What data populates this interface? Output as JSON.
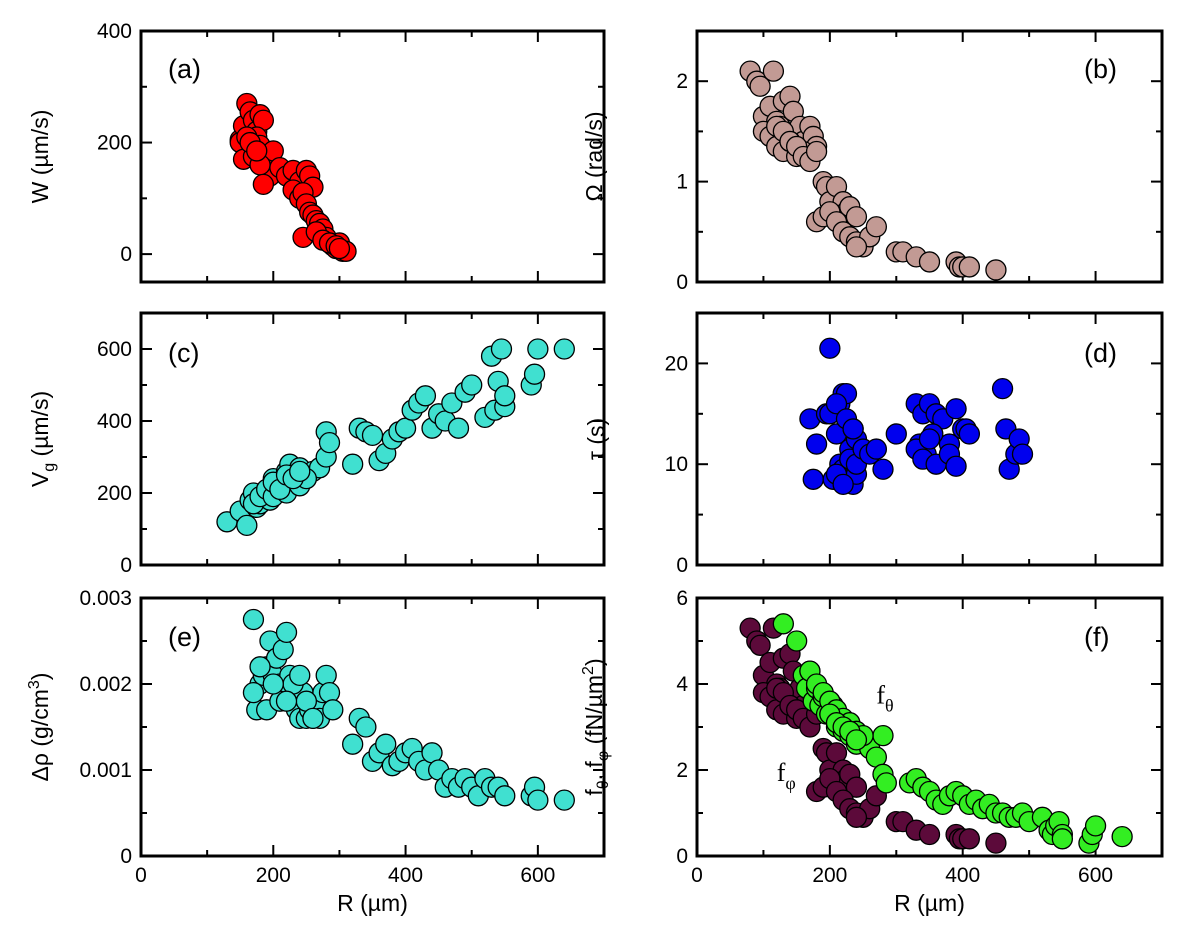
{
  "chart_data": [
    {
      "id": "a",
      "type": "scatter",
      "panel_label": "(a)",
      "xlabel": "",
      "ylabel": "W (µm/s)",
      "xlim": [
        0,
        700
      ],
      "ylim": [
        -50,
        400
      ],
      "xticks": [
        0,
        200,
        400,
        600
      ],
      "yticks": [
        0,
        200,
        400
      ],
      "show_xticklabels": false,
      "color": "#ff0000",
      "x": [
        150,
        155,
        160,
        165,
        170,
        175,
        180,
        185,
        160,
        165,
        170,
        175,
        180,
        150,
        155,
        190,
        195,
        200,
        160,
        170,
        180,
        185,
        165,
        175,
        210,
        220,
        230,
        240,
        250,
        255,
        260,
        230,
        240,
        245,
        250,
        255,
        260,
        265,
        270,
        275,
        280,
        285,
        290,
        295,
        300,
        305,
        310,
        245,
        265,
        275,
        285,
        295,
        300
      ],
      "y": [
        205,
        230,
        270,
        255,
        240,
        220,
        250,
        240,
        180,
        190,
        200,
        210,
        195,
        200,
        170,
        175,
        140,
        185,
        210,
        175,
        160,
        125,
        200,
        185,
        155,
        140,
        150,
        130,
        150,
        140,
        120,
        115,
        100,
        110,
        90,
        75,
        70,
        60,
        55,
        45,
        30,
        20,
        15,
        10,
        20,
        5,
        5,
        30,
        40,
        25,
        20,
        15,
        10
      ]
    },
    {
      "id": "b",
      "type": "scatter",
      "panel_label": "(b)",
      "xlabel": "",
      "ylabel": "Ω (rad/s)",
      "xlim": [
        0,
        700
      ],
      "ylim": [
        0,
        2.5
      ],
      "xticks": [
        0,
        200,
        400,
        600
      ],
      "yticks": [
        0,
        1,
        2
      ],
      "show_xticklabels": false,
      "color": "#c29a94",
      "x": [
        80,
        90,
        95,
        100,
        110,
        115,
        120,
        125,
        130,
        140,
        145,
        150,
        155,
        160,
        165,
        170,
        175,
        180,
        100,
        110,
        120,
        130,
        140,
        150,
        160,
        120,
        130,
        140,
        150,
        160,
        170,
        180,
        190,
        195,
        200,
        210,
        220,
        225,
        230,
        240,
        180,
        190,
        200,
        210,
        220,
        230,
        240,
        250,
        260,
        270,
        240,
        300,
        310,
        330,
        350,
        390,
        395,
        400,
        410,
        450
      ],
      "y": [
        2.1,
        2.0,
        1.95,
        1.65,
        1.75,
        2.1,
        1.6,
        1.55,
        1.8,
        1.85,
        1.7,
        1.5,
        1.55,
        1.4,
        1.3,
        1.55,
        1.45,
        1.35,
        1.5,
        1.45,
        1.35,
        1.3,
        1.4,
        1.25,
        1.3,
        1.55,
        1.5,
        1.4,
        1.35,
        1.25,
        1.2,
        1.3,
        1.0,
        0.95,
        0.8,
        0.95,
        0.8,
        0.7,
        0.75,
        0.65,
        0.6,
        0.65,
        0.7,
        0.6,
        0.5,
        0.45,
        0.4,
        0.35,
        0.45,
        0.55,
        0.35,
        0.3,
        0.3,
        0.25,
        0.2,
        0.2,
        0.15,
        0.15,
        0.15,
        0.12
      ]
    },
    {
      "id": "c",
      "type": "scatter",
      "panel_label": "(c)",
      "xlabel": "",
      "ylabel": "V_g (µm/s)",
      "ylabel_main": "V",
      "ylabel_sub": "g",
      "ylabel_tail": " (µm/s)",
      "xlim": [
        0,
        700
      ],
      "ylim": [
        0,
        700
      ],
      "xticks": [
        0,
        200,
        400,
        600
      ],
      "yticks": [
        0,
        200,
        400,
        600
      ],
      "show_xticklabels": false,
      "color": "#40e0d0",
      "x": [
        130,
        150,
        160,
        165,
        170,
        175,
        180,
        185,
        190,
        195,
        200,
        205,
        210,
        215,
        220,
        225,
        230,
        240,
        250,
        260,
        270,
        280,
        280,
        285,
        320,
        330,
        340,
        350,
        360,
        370,
        380,
        390,
        400,
        410,
        420,
        430,
        440,
        450,
        460,
        470,
        480,
        490,
        500,
        520,
        530,
        535,
        540,
        545,
        550,
        550,
        590,
        595,
        600,
        640,
        170,
        180,
        190,
        200,
        210,
        220,
        230,
        240,
        250,
        200,
        210,
        220,
        230,
        240
      ],
      "y": [
        120,
        150,
        110,
        180,
        200,
        160,
        170,
        190,
        210,
        180,
        240,
        200,
        230,
        220,
        260,
        280,
        250,
        270,
        240,
        260,
        270,
        300,
        370,
        340,
        280,
        380,
        370,
        360,
        290,
        310,
        350,
        370,
        380,
        430,
        450,
        470,
        380,
        420,
        400,
        450,
        380,
        480,
        500,
        410,
        580,
        430,
        510,
        600,
        440,
        470,
        500,
        530,
        600,
        600,
        170,
        190,
        210,
        190,
        220,
        200,
        250,
        220,
        240,
        230,
        210,
        250,
        240,
        260
      ]
    },
    {
      "id": "d",
      "type": "scatter",
      "panel_label": "(d)",
      "xlabel": "",
      "ylabel": "τ (s)",
      "xlim": [
        0,
        700
      ],
      "ylim": [
        0,
        25
      ],
      "xticks": [
        0,
        200,
        400,
        600
      ],
      "yticks": [
        0,
        10,
        20
      ],
      "show_xticklabels": false,
      "color": "#0000ee",
      "x": [
        170,
        175,
        180,
        195,
        200,
        205,
        210,
        215,
        220,
        225,
        230,
        235,
        240,
        215,
        220,
        225,
        230,
        235,
        240,
        200,
        210,
        220,
        230,
        240,
        250,
        260,
        270,
        280,
        210,
        225,
        235,
        300,
        330,
        340,
        350,
        360,
        370,
        380,
        335,
        345,
        355,
        390,
        400,
        405,
        410,
        330,
        340,
        350,
        360,
        380,
        390,
        460,
        465,
        470,
        480,
        485,
        490
      ],
      "y": [
        14.5,
        8.5,
        12,
        15,
        21.5,
        8.5,
        13,
        16,
        17,
        17,
        11.5,
        13.5,
        12.5,
        10,
        9.5,
        9,
        8.5,
        8,
        9,
        15,
        9,
        8,
        10.5,
        10,
        11.5,
        11,
        11.5,
        9.5,
        16,
        14.5,
        13.5,
        13,
        16,
        15,
        16,
        15,
        14.5,
        12,
        12,
        11,
        13,
        15.5,
        13.5,
        13.5,
        13,
        11.5,
        10.5,
        12.5,
        10,
        11,
        9.8,
        17.5,
        13.5,
        9.5,
        11,
        12.5,
        11
      ]
    },
    {
      "id": "e",
      "type": "scatter",
      "panel_label": "(e)",
      "xlabel": "R (µm)",
      "ylabel": "Δρ (g/cm³)",
      "ylabel_main": "Δρ (g/cm",
      "ylabel_sup": "3",
      "ylabel_tail": ")",
      "xlim": [
        0,
        700
      ],
      "ylim": [
        0,
        0.003
      ],
      "xticks": [
        0,
        200,
        400,
        600
      ],
      "yticks": [
        0,
        0.001,
        0.002,
        0.003
      ],
      "ytick_labels": [
        "0",
        "0.001",
        "0.002",
        "0.003"
      ],
      "show_xticklabels": true,
      "color": "#40e0d0",
      "x": [
        170,
        175,
        180,
        185,
        190,
        195,
        200,
        205,
        210,
        215,
        220,
        225,
        230,
        235,
        240,
        245,
        250,
        255,
        260,
        265,
        270,
        275,
        280,
        285,
        170,
        190,
        210,
        230,
        250,
        270,
        290,
        320,
        330,
        340,
        350,
        360,
        370,
        380,
        390,
        400,
        410,
        420,
        430,
        440,
        450,
        460,
        470,
        480,
        490,
        500,
        510,
        520,
        530,
        540,
        550,
        590,
        595,
        600,
        640,
        180,
        200,
        220,
        240,
        260
      ],
      "y": [
        0.00275,
        0.0017,
        0.002,
        0.0021,
        0.0022,
        0.0025,
        0.0021,
        0.0023,
        0.002,
        0.0024,
        0.0026,
        0.0021,
        0.0018,
        0.0017,
        0.0016,
        0.0019,
        0.0016,
        0.0017,
        0.0016,
        0.0017,
        0.0018,
        0.0019,
        0.0021,
        0.0019,
        0.0019,
        0.0017,
        0.0018,
        0.002,
        0.0018,
        0.0016,
        0.0017,
        0.0013,
        0.0016,
        0.0015,
        0.0011,
        0.0012,
        0.0013,
        0.00105,
        0.0011,
        0.0012,
        0.00125,
        0.0011,
        0.001,
        0.0012,
        0.001,
        0.0008,
        0.0009,
        0.0008,
        0.0009,
        0.0008,
        0.0007,
        0.0009,
        0.0008,
        0.0008,
        0.0007,
        0.0007,
        0.0008,
        0.00065,
        0.00065,
        0.0022,
        0.002,
        0.0018,
        0.0021,
        0.0016
      ]
    },
    {
      "id": "f",
      "type": "scatter",
      "panel_label": "(f)",
      "xlabel": "R (µm)",
      "ylabel": "f_θ, f_φ (fN/µm²)",
      "xlim": [
        0,
        700
      ],
      "ylim": [
        0,
        6
      ],
      "xticks": [
        0,
        200,
        400,
        600
      ],
      "yticks": [
        0,
        2,
        4,
        6
      ],
      "show_xticklabels": true,
      "series": [
        {
          "name": "f_φ",
          "color": "#5c0a3a",
          "x": [
            80,
            90,
            95,
            100,
            110,
            115,
            120,
            125,
            130,
            140,
            145,
            150,
            155,
            160,
            165,
            170,
            175,
            180,
            100,
            110,
            120,
            130,
            140,
            150,
            160,
            120,
            130,
            140,
            150,
            160,
            170,
            180,
            190,
            195,
            200,
            210,
            220,
            225,
            230,
            240,
            180,
            190,
            200,
            210,
            220,
            230,
            240,
            250,
            260,
            270,
            240,
            300,
            310,
            330,
            350,
            390,
            395,
            400,
            410,
            450
          ],
          "y": [
            5.3,
            5.0,
            4.9,
            4.2,
            4.5,
            5.3,
            4.0,
            3.9,
            4.6,
            4.7,
            4.3,
            3.8,
            3.9,
            3.5,
            3.3,
            3.9,
            3.7,
            3.4,
            3.8,
            3.7,
            3.4,
            3.3,
            3.5,
            3.2,
            3.3,
            3.9,
            3.8,
            3.5,
            3.4,
            3.2,
            3.0,
            3.3,
            2.5,
            2.4,
            2.0,
            2.4,
            2.0,
            1.8,
            1.9,
            1.6,
            1.5,
            1.6,
            1.8,
            1.5,
            1.3,
            1.1,
            1.0,
            0.9,
            1.1,
            1.4,
            0.9,
            0.8,
            0.8,
            0.6,
            0.5,
            0.5,
            0.4,
            0.4,
            0.4,
            0.3
          ]
        },
        {
          "name": "f_θ",
          "color": "#33ee22",
          "x": [
            130,
            150,
            160,
            165,
            170,
            175,
            180,
            185,
            190,
            195,
            200,
            205,
            210,
            215,
            220,
            225,
            230,
            240,
            250,
            260,
            270,
            280,
            280,
            285,
            320,
            330,
            340,
            350,
            360,
            370,
            380,
            390,
            400,
            410,
            420,
            430,
            440,
            450,
            460,
            470,
            480,
            490,
            500,
            520,
            530,
            535,
            540,
            545,
            550,
            550,
            590,
            595,
            600,
            640,
            170,
            180,
            190,
            200,
            210,
            220,
            230,
            240,
            250,
            200,
            210,
            220,
            230,
            240
          ],
          "y": [
            5.4,
            5.0,
            4.2,
            3.9,
            4.3,
            3.6,
            3.9,
            3.5,
            3.7,
            3.3,
            3.3,
            3.5,
            3.0,
            3.1,
            2.9,
            3.0,
            2.8,
            2.6,
            2.7,
            2.5,
            2.3,
            2.8,
            1.9,
            1.7,
            1.7,
            1.8,
            1.6,
            1.5,
            1.3,
            1.2,
            1.4,
            1.5,
            1.4,
            1.2,
            1.3,
            1.1,
            1.2,
            1.0,
            1.0,
            0.9,
            0.9,
            1.0,
            0.8,
            0.9,
            0.6,
            0.5,
            0.7,
            0.8,
            0.5,
            0.4,
            0.3,
            0.5,
            0.7,
            0.45,
            4.3,
            4.0,
            3.8,
            3.6,
            3.4,
            3.2,
            3.1,
            2.9,
            2.8,
            3.3,
            3.1,
            3.0,
            2.9,
            2.7
          ]
        }
      ],
      "annotations": [
        {
          "text": "f",
          "sub": "θ",
          "x": 270,
          "y": 3.55
        },
        {
          "text": "f",
          "sub": "φ",
          "x": 120,
          "y": 1.75
        }
      ]
    }
  ]
}
